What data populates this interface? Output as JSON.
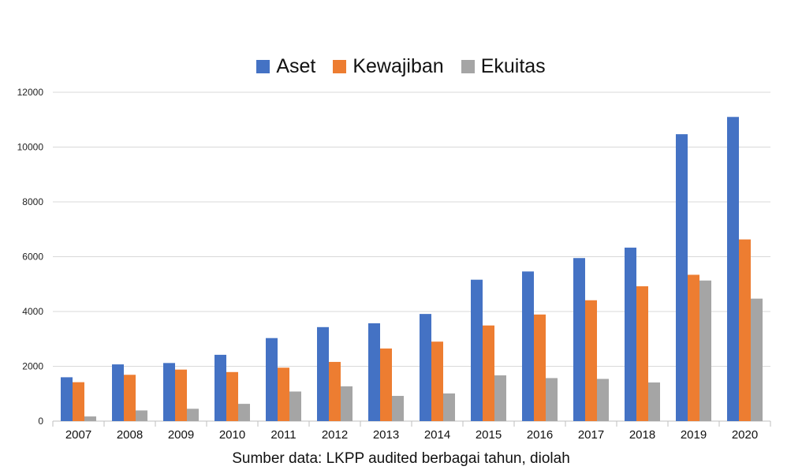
{
  "chart_data": {
    "type": "bar",
    "categories": [
      "2007",
      "2008",
      "2009",
      "2010",
      "2011",
      "2012",
      "2013",
      "2014",
      "2015",
      "2016",
      "2017",
      "2018",
      "2019",
      "2020"
    ],
    "series": [
      {
        "name": "Aset",
        "color": "#4472c4",
        "values": [
          1600,
          2070,
          2120,
          2420,
          3030,
          3430,
          3570,
          3910,
          5160,
          5460,
          5950,
          6330,
          10470,
          11100
        ]
      },
      {
        "name": "Kewajiban",
        "color": "#ed7d31",
        "values": [
          1420,
          1690,
          1880,
          1790,
          1950,
          2160,
          2650,
          2900,
          3490,
          3890,
          4410,
          4920,
          5340,
          6630
        ]
      },
      {
        "name": "Ekuitas",
        "color": "#a5a5a5",
        "values": [
          170,
          390,
          450,
          630,
          1080,
          1270,
          920,
          1010,
          1670,
          1570,
          1540,
          1410,
          5130,
          4470
        ]
      }
    ],
    "yticks": [
      "0",
      "2000",
      "4000",
      "6000",
      "8000",
      "10000",
      "12000"
    ],
    "ylim": [
      0,
      12000
    ],
    "grid": true,
    "legend_position": "top-center"
  },
  "footer": {
    "source": "Sumber data: LKPP audited berbagai tahun, diolah"
  }
}
